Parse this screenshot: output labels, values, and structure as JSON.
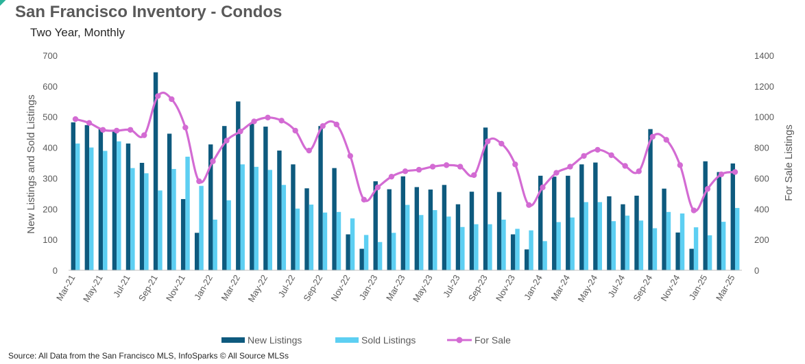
{
  "header": {
    "title": "San Francisco Inventory - Condos",
    "subtitle": "Two Year, Monthly"
  },
  "footer": {
    "source": "Source: All Data from the San Francisco MLS, InfoSparks © All Source MLSs"
  },
  "chart_data": {
    "type": "bar",
    "categories": [
      "Mar-21",
      "Apr-21",
      "May-21",
      "Jun-21",
      "Jul-21",
      "Aug-21",
      "Sep-21",
      "Oct-21",
      "Nov-21",
      "Dec-21",
      "Jan-22",
      "Feb-22",
      "Mar-22",
      "Apr-22",
      "May-22",
      "Jun-22",
      "Jul-22",
      "Aug-22",
      "Sep-22",
      "Oct-22",
      "Nov-22",
      "Dec-22",
      "Jan-23",
      "Feb-23",
      "Mar-23",
      "Apr-23",
      "May-23",
      "Jun-23",
      "Jul-23",
      "Aug-23",
      "Sep-23",
      "Oct-23",
      "Nov-23",
      "Dec-23",
      "Jan-24",
      "Feb-24",
      "Mar-24",
      "Apr-24",
      "May-24",
      "Jun-24",
      "Jul-24",
      "Aug-24",
      "Sep-24",
      "Oct-24",
      "Nov-24",
      "Dec-24",
      "Jan-25",
      "Feb-25",
      "Mar-25"
    ],
    "x_tick_labels": [
      "Mar-21",
      "May-21",
      "Jul-21",
      "Sep-21",
      "Nov-21",
      "Jan-22",
      "Mar-22",
      "May-22",
      "Jul-22",
      "Sep-22",
      "Nov-22",
      "Jan-23",
      "Mar-23",
      "May-23",
      "Jul-23",
      "Sep-23",
      "Nov-23",
      "Jan-24",
      "Mar-24",
      "May-24",
      "Jul-24",
      "Sep-24",
      "Nov-24",
      "Jan-25",
      "Mar-25"
    ],
    "series": [
      {
        "name": "New Listings",
        "type": "bar",
        "axis": "left",
        "color": "#0e5a7e",
        "values": [
          482,
          473,
          462,
          455,
          413,
          350,
          645,
          445,
          232,
          122,
          410,
          470,
          550,
          480,
          468,
          390,
          345,
          267,
          470,
          333,
          117,
          70,
          290,
          264,
          306,
          271,
          263,
          278,
          215,
          256,
          465,
          255,
          117,
          68,
          308,
          305,
          308,
          345,
          351,
          241,
          215,
          243,
          460,
          266,
          123,
          70,
          355,
          320,
          348
        ]
      },
      {
        "name": "Sold Listings",
        "type": "bar",
        "axis": "left",
        "color": "#5dcff2",
        "values": [
          413,
          400,
          389,
          420,
          333,
          316,
          260,
          330,
          370,
          275,
          165,
          228,
          345,
          337,
          327,
          278,
          201,
          214,
          188,
          190,
          169,
          115,
          92,
          122,
          213,
          180,
          196,
          175,
          141,
          150,
          150,
          165,
          135,
          130,
          95,
          157,
          172,
          222,
          222,
          160,
          178,
          162,
          137,
          190,
          185,
          140,
          114,
          158,
          203
        ]
      },
      {
        "name": "For Sale",
        "type": "line",
        "axis": "right",
        "color": "#d36bd3",
        "values": [
          985,
          960,
          915,
          910,
          915,
          880,
          1135,
          1115,
          930,
          580,
          710,
          845,
          905,
          970,
          995,
          975,
          910,
          780,
          940,
          950,
          745,
          460,
          540,
          610,
          645,
          655,
          675,
          685,
          675,
          620,
          840,
          825,
          690,
          425,
          540,
          635,
          675,
          745,
          785,
          750,
          680,
          645,
          870,
          850,
          685,
          390,
          530,
          625,
          640
        ]
      }
    ],
    "ylabel": "New Listings and Sold Listings",
    "y2label": "For Sale Listings",
    "ylim": [
      0,
      700
    ],
    "y2lim": [
      0,
      1400
    ],
    "y_ticks": [
      "0",
      "100",
      "200",
      "300",
      "400",
      "500",
      "600",
      "700"
    ],
    "y2_ticks": [
      "0",
      "200",
      "400",
      "600",
      "800",
      "1000",
      "1200",
      "1400"
    ],
    "legend_position": "bottom",
    "grid": false
  }
}
